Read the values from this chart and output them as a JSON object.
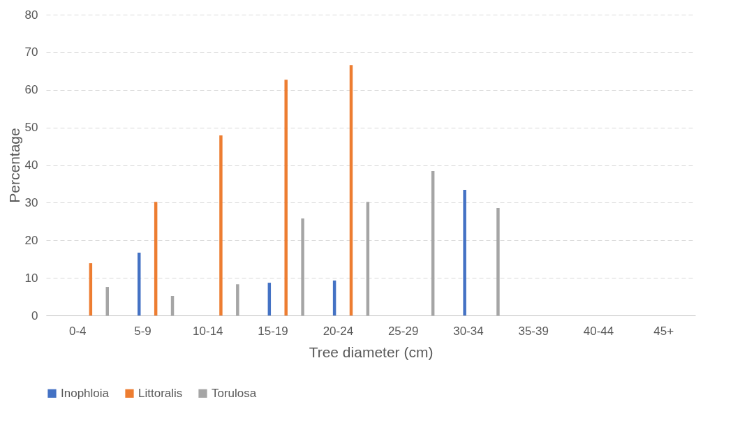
{
  "chart_data": {
    "type": "bar",
    "xlabel": "Tree diameter (cm)",
    "ylabel": "Percentage",
    "categories": [
      "0-4",
      "5-9",
      "10-14",
      "15-19",
      "20-24",
      "25-29",
      "30-34",
      "35-39",
      "40-44",
      "45+"
    ],
    "series": [
      {
        "name": "Inophloia",
        "color": "#4472c4",
        "values": [
          0,
          16.7,
          0,
          8.7,
          9.3,
          0,
          33.4,
          0,
          0,
          0
        ]
      },
      {
        "name": "Littoralis",
        "color": "#ed7d31",
        "values": [
          13.9,
          30.2,
          47.9,
          62.7,
          66.6,
          0,
          0,
          0,
          0,
          0
        ]
      },
      {
        "name": "Torulosa",
        "color": "#a5a5a5",
        "values": [
          7.6,
          5.2,
          8.3,
          25.8,
          30.2,
          38.4,
          28.6,
          0,
          0,
          0
        ]
      }
    ],
    "ylim": [
      0,
      80
    ],
    "yticks": [
      0,
      10,
      20,
      30,
      40,
      50,
      60,
      70,
      80
    ],
    "grid": "y",
    "legend": "bottom"
  }
}
